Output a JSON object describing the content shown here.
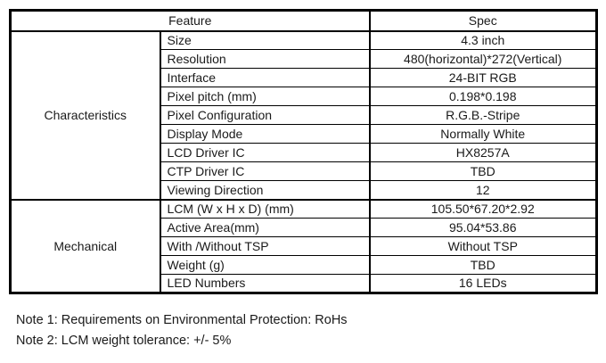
{
  "page": {
    "background": "#ffffff",
    "text_color": "#1a1a1a",
    "border_color": "#000000"
  },
  "table": {
    "header": {
      "feature_label": "Feature",
      "spec_label": "Spec"
    },
    "sections": [
      {
        "group": "Characteristics",
        "rows": [
          {
            "feature": "Size",
            "spec": "4.3 inch"
          },
          {
            "feature": "Resolution",
            "spec": "480(horizontal)*272(Vertical)"
          },
          {
            "feature": "Interface",
            "spec": "24-BIT RGB"
          },
          {
            "feature": "Pixel pitch (mm)",
            "spec": "0.198*0.198"
          },
          {
            "feature": "Pixel Configuration",
            "spec": "R.G.B.-Stripe"
          },
          {
            "feature": "Display Mode",
            "spec": "Normally White"
          },
          {
            "feature": "LCD Driver IC",
            "spec": "HX8257A"
          },
          {
            "feature": "CTP Driver IC",
            "spec": "TBD"
          },
          {
            "feature": "Viewing Direction",
            "spec": "12"
          }
        ]
      },
      {
        "group": "Mechanical",
        "rows": [
          {
            "feature": "LCM (W x H x D) (mm)",
            "spec": "105.50*67.20*2.92"
          },
          {
            "feature": "Active Area(mm)",
            "spec": "95.04*53.86"
          },
          {
            "feature": "With /Without TSP",
            "spec": "Without TSP"
          },
          {
            "feature": "Weight (g)",
            "spec": "TBD"
          },
          {
            "feature": "LED Numbers",
            "spec": "16 LEDs"
          }
        ]
      }
    ]
  },
  "notes": [
    "Note 1: Requirements on Environmental Protection: RoHs",
    "Note 2: LCM weight tolerance: +/- 5%"
  ]
}
